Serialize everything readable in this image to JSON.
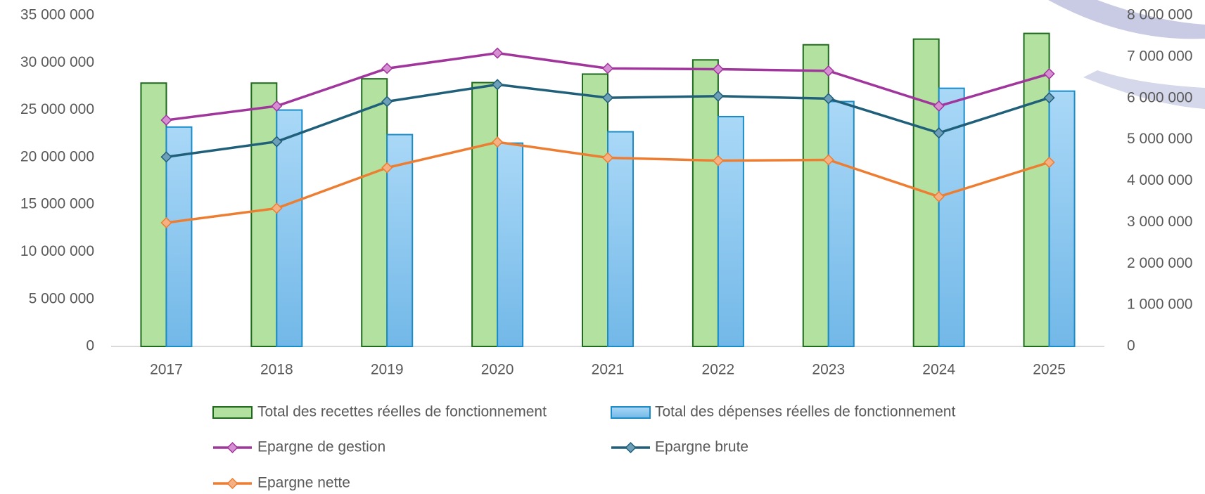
{
  "chart_data": {
    "type": "bar",
    "categories": [
      "2017",
      "2018",
      "2019",
      "2020",
      "2021",
      "2022",
      "2023",
      "2024",
      "2025"
    ],
    "series": [
      {
        "name": "Total des recettes réelles de fonctionnement",
        "type": "bar",
        "color": "#b3e2a0",
        "stroke": "#1e6b1e",
        "values": [
          27850000,
          27850000,
          28300000,
          27900000,
          28800000,
          30300000,
          31900000,
          32500000,
          33100000
        ]
      },
      {
        "name": "Total des dépenses réelles de fonctionnement",
        "type": "bar",
        "color": "#8fc9f0",
        "stroke": "#1a8cc8",
        "values": [
          23200000,
          25000000,
          22400000,
          21500000,
          22700000,
          24300000,
          25900000,
          27300000,
          27000000
        ]
      },
      {
        "name": "Epargne de gestion",
        "type": "line",
        "axis": "y2",
        "color": "#a0359c",
        "marker_color": "#d68fd3",
        "values": [
          5470000,
          5810000,
          6720000,
          7090000,
          6720000,
          6700000,
          6660000,
          5810000,
          6590000
        ]
      },
      {
        "name": "Epargne brute",
        "type": "line",
        "axis": "y2",
        "color": "#1f5f7a",
        "marker_color": "#6e9fb8",
        "values": [
          4580000,
          4950000,
          5920000,
          6330000,
          6010000,
          6050000,
          5990000,
          5160000,
          6010000
        ]
      },
      {
        "name": "Epargne nette",
        "type": "line",
        "axis": "y2",
        "color": "#ed7d31",
        "marker_color": "#f5b183",
        "values": [
          2990000,
          3340000,
          4320000,
          4940000,
          4560000,
          4490000,
          4510000,
          3620000,
          4450000
        ]
      }
    ],
    "ylim": [
      0,
      35000000
    ],
    "yticks": [
      0,
      {
        "value": 5000000,
        "label": "5 000 000"
      },
      {
        "value": 10000000,
        "label": "10 000 000"
      },
      {
        "value": 15000000,
        "label": "15 000 000"
      },
      {
        "value": 20000000,
        "label": "20 000 000"
      },
      {
        "value": 25000000,
        "label": "25 000 000"
      },
      {
        "value": 30000000,
        "label": "30 000 000"
      },
      {
        "value": 35000000,
        "label": "35 000 000"
      }
    ],
    "y2lim": [
      0,
      8000000
    ],
    "y2ticks": [
      0,
      {
        "value": 1000000,
        "label": "1 000 000"
      },
      {
        "value": 2000000,
        "label": "2 000 000"
      },
      {
        "value": 3000000,
        "label": "3 000 000"
      },
      {
        "value": 4000000,
        "label": "4 000 000"
      },
      {
        "value": 5000000,
        "label": "5 000 000"
      },
      {
        "value": 6000000,
        "label": "6 000 000"
      },
      {
        "value": 7000000,
        "label": "7 000 000"
      },
      {
        "value": 8000000,
        "label": "8 000 000"
      }
    ],
    "grid": false
  }
}
